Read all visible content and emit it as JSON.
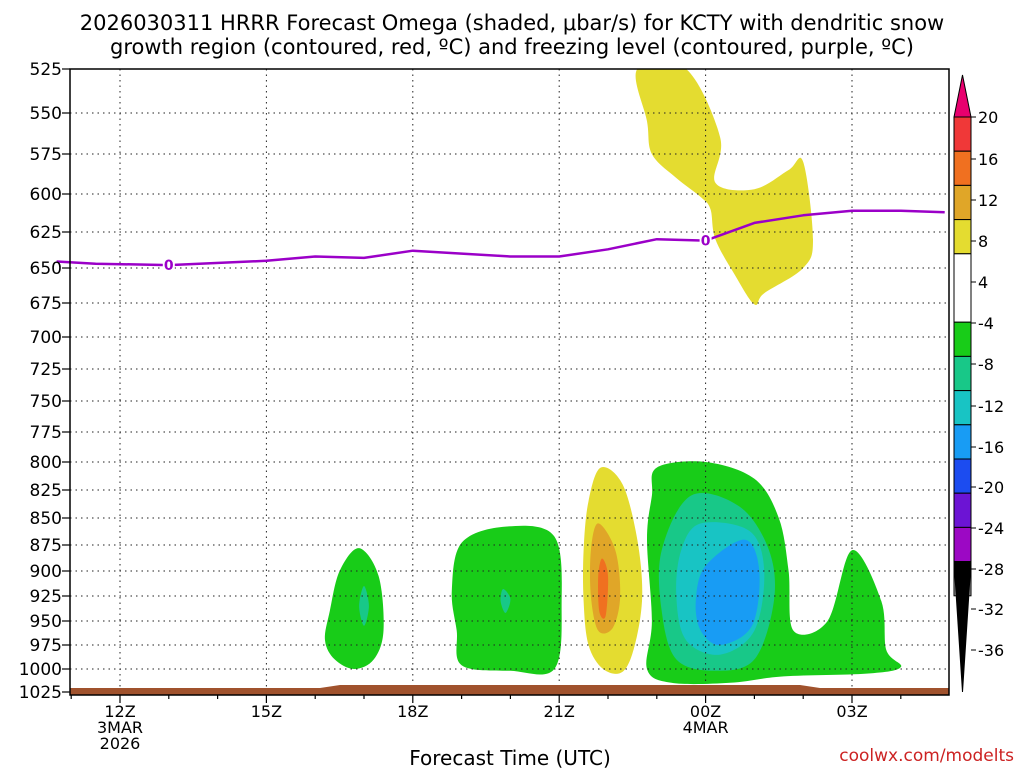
{
  "chart_data": {
    "type": "filled-contour",
    "title_line1": "2026030311 HRRR Forecast Omega (shaded, μbar/s) for KCTY with dendritic snow",
    "title_line2": "growth region (contoured, red, ºC) and freezing level (contoured, purple, ºC)",
    "xlabel": "Forecast Time (UTC)",
    "watermark": "coolwx.com/modelts",
    "x_range_hours": [
      10.7,
      28.9
    ],
    "y_range_hpa": [
      525,
      1030
    ],
    "y_ticks": [
      525,
      550,
      575,
      600,
      625,
      650,
      675,
      700,
      725,
      750,
      775,
      800,
      825,
      850,
      875,
      900,
      925,
      950,
      975,
      1000,
      1025
    ],
    "x_ticks": [
      {
        "hour": 12,
        "lines": [
          "12Z",
          "3MAR",
          "2026"
        ]
      },
      {
        "hour": 15,
        "lines": [
          "15Z"
        ]
      },
      {
        "hour": 18,
        "lines": [
          "18Z"
        ]
      },
      {
        "hour": 21,
        "lines": [
          "21Z"
        ]
      },
      {
        "hour": 24,
        "lines": [
          "00Z",
          "4MAR"
        ]
      },
      {
        "hour": 27,
        "lines": [
          "03Z"
        ]
      }
    ],
    "colorbar": {
      "labels": [
        "20",
        "16",
        "12",
        "8",
        "4",
        "-4",
        "-8",
        "-12",
        "-16",
        "-20",
        "-24",
        "-28",
        "-32",
        "-36"
      ],
      "colors": [
        "#e8006e",
        "#f03838",
        "#f07020",
        "#e0a628",
        "#e4dc30",
        "#ffffff",
        "#18cc18",
        "#18c888",
        "#18c4c4",
        "#189cf4",
        "#1c4cf0",
        "#6c14d4",
        "#9c08c4",
        "#a0a0a0",
        "#000000"
      ]
    },
    "freezing_level": {
      "label": "0",
      "color": "#9b00c8",
      "points": [
        [
          10.7,
          645.5
        ],
        [
          11.5,
          647
        ],
        [
          13,
          648
        ],
        [
          15,
          645
        ],
        [
          16,
          642
        ],
        [
          17,
          643
        ],
        [
          18,
          638
        ],
        [
          19,
          640
        ],
        [
          20,
          642
        ],
        [
          21,
          642
        ],
        [
          22,
          637
        ],
        [
          23,
          630
        ],
        [
          24,
          631
        ],
        [
          25,
          619
        ],
        [
          26,
          614
        ],
        [
          27,
          611
        ],
        [
          28,
          611
        ],
        [
          28.9,
          612
        ]
      ]
    },
    "omega_regions": [
      {
        "value_band": "4 to 8",
        "color": "#e4dc30",
        "points": [
          [
            22.6,
            525
          ],
          [
            23.6,
            525
          ],
          [
            24.3,
            565
          ],
          [
            24.2,
            593
          ],
          [
            25.0,
            597
          ],
          [
            25.7,
            585
          ],
          [
            26.0,
            580
          ],
          [
            26.2,
            630
          ],
          [
            26.0,
            650
          ],
          [
            25.2,
            668
          ],
          [
            25.0,
            676
          ],
          [
            24.6,
            655
          ],
          [
            24.2,
            630
          ],
          [
            24.1,
            610
          ],
          [
            23.9,
            602
          ],
          [
            23.4,
            590
          ],
          [
            22.9,
            575
          ],
          [
            22.8,
            555
          ]
        ]
      },
      {
        "value_band": "4 to 8",
        "color": "#e4dc30",
        "points": [
          [
            21.85,
            805
          ],
          [
            22.3,
            820
          ],
          [
            22.6,
            870
          ],
          [
            22.7,
            925
          ],
          [
            22.55,
            975
          ],
          [
            22.3,
            1003
          ],
          [
            21.9,
            1000
          ],
          [
            21.6,
            975
          ],
          [
            21.5,
            930
          ],
          [
            21.5,
            880
          ],
          [
            21.6,
            835
          ]
        ]
      },
      {
        "value_band": "8 to 12",
        "color": "#e0a628",
        "points": [
          [
            21.8,
            855
          ],
          [
            22.15,
            880
          ],
          [
            22.25,
            925
          ],
          [
            22.1,
            957
          ],
          [
            21.8,
            960
          ],
          [
            21.65,
            925
          ],
          [
            21.65,
            880
          ]
        ]
      },
      {
        "value_band": "12 to 16",
        "color": "#f07020",
        "points": [
          [
            21.88,
            888
          ],
          [
            22.0,
            905
          ],
          [
            21.95,
            945
          ],
          [
            21.82,
            940
          ],
          [
            21.8,
            905
          ]
        ]
      },
      {
        "value_band": "-4 to -8",
        "color": "#18cc18",
        "points": [
          [
            16.9,
            878
          ],
          [
            17.3,
            905
          ],
          [
            17.4,
            960
          ],
          [
            17.2,
            990
          ],
          [
            16.8,
            1000
          ],
          [
            16.4,
            990
          ],
          [
            16.2,
            970
          ],
          [
            16.3,
            940
          ],
          [
            16.5,
            900
          ]
        ]
      },
      {
        "value_band": "-8 to -12",
        "color": "#18c888",
        "points": [
          [
            17.0,
            915
          ],
          [
            17.1,
            935
          ],
          [
            17.0,
            955
          ],
          [
            16.9,
            935
          ]
        ]
      },
      {
        "value_band": "-4 to -8",
        "color": "#18cc18",
        "points": [
          [
            19.0,
            873
          ],
          [
            19.9,
            858
          ],
          [
            20.9,
            867
          ],
          [
            21.05,
            935
          ],
          [
            20.9,
            1000
          ],
          [
            20.0,
            1002
          ],
          [
            19.0,
            996
          ],
          [
            18.9,
            960
          ],
          [
            18.8,
            920
          ]
        ]
      },
      {
        "value_band": "-8 to -12",
        "color": "#18c888",
        "points": [
          [
            19.85,
            918
          ],
          [
            20.0,
            928
          ],
          [
            19.9,
            942
          ],
          [
            19.8,
            930
          ]
        ]
      },
      {
        "value_band": "-4 to -8",
        "color": "#18cc18",
        "points": [
          [
            23.0,
            805
          ],
          [
            24.0,
            800
          ],
          [
            25.0,
            815
          ],
          [
            25.5,
            850
          ],
          [
            25.7,
            900
          ],
          [
            25.8,
            960
          ],
          [
            26.5,
            950
          ],
          [
            27.0,
            880
          ],
          [
            27.6,
            930
          ],
          [
            27.7,
            980
          ],
          [
            28.0,
            998
          ],
          [
            27.3,
            1005
          ],
          [
            25.6,
            1008
          ],
          [
            24.5,
            1015
          ],
          [
            23.3,
            1015
          ],
          [
            22.8,
            1000
          ],
          [
            22.9,
            950
          ],
          [
            22.8,
            870
          ],
          [
            22.9,
            830
          ]
        ]
      },
      {
        "value_band": "-8 to -12",
        "color": "#18c888",
        "points": [
          [
            23.7,
            830
          ],
          [
            24.7,
            840
          ],
          [
            25.3,
            880
          ],
          [
            25.4,
            930
          ],
          [
            25.0,
            990
          ],
          [
            24.2,
            1002
          ],
          [
            23.4,
            990
          ],
          [
            23.1,
            940
          ],
          [
            23.1,
            880
          ]
        ]
      },
      {
        "value_band": "-12 to -16",
        "color": "#18c4c4",
        "points": [
          [
            23.9,
            855
          ],
          [
            24.9,
            862
          ],
          [
            25.2,
            900
          ],
          [
            25.0,
            960
          ],
          [
            24.3,
            985
          ],
          [
            23.6,
            970
          ],
          [
            23.4,
            925
          ],
          [
            23.5,
            880
          ]
        ]
      },
      {
        "value_band": "-16 to -20",
        "color": "#189cf4",
        "points": [
          [
            24.8,
            870
          ],
          [
            25.1,
            900
          ],
          [
            24.95,
            955
          ],
          [
            24.3,
            975
          ],
          [
            23.9,
            960
          ],
          [
            23.8,
            930
          ],
          [
            24.0,
            895
          ]
        ]
      }
    ]
  }
}
